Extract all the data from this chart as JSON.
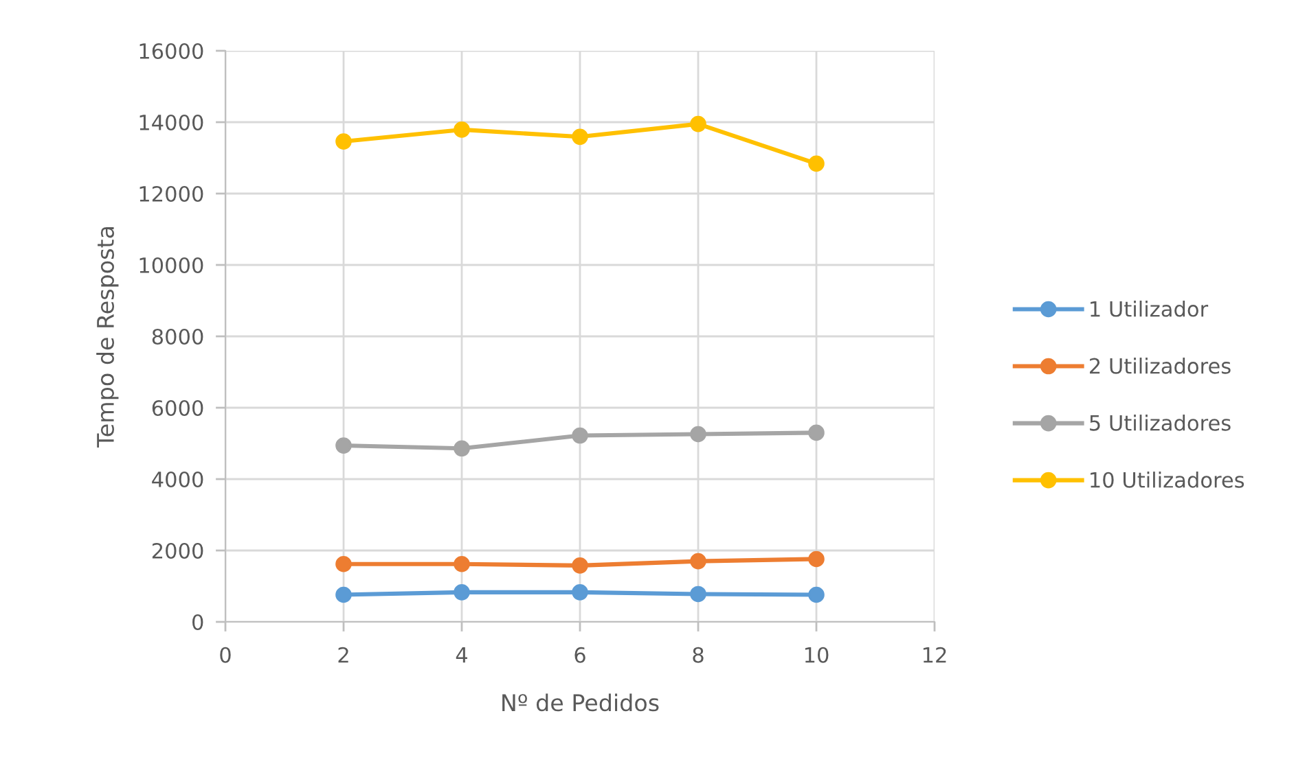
{
  "chart_data": {
    "type": "line",
    "xlabel": "Nº de Pedidos",
    "ylabel": "Tempo de Resposta",
    "x": [
      2,
      4,
      6,
      8,
      10
    ],
    "series": [
      {
        "name": "1 Utilizador",
        "color": "#5b9bd5",
        "values": [
          760,
          830,
          830,
          780,
          760
        ]
      },
      {
        "name": "2 Utilizadores",
        "color": "#ed7d31",
        "values": [
          1620,
          1620,
          1580,
          1700,
          1760
        ]
      },
      {
        "name": "5 Utilizadores",
        "color": "#a5a5a5",
        "values": [
          4940,
          4860,
          5220,
          5260,
          5300
        ]
      },
      {
        "name": "10 Utilizadores",
        "color": "#ffc000",
        "values": [
          13460,
          13790,
          13590,
          13950,
          12840
        ]
      }
    ],
    "xlim": [
      0,
      12
    ],
    "ylim": [
      0,
      16000
    ],
    "xticks": [
      0,
      2,
      4,
      6,
      8,
      10,
      12
    ],
    "yticks": [
      0,
      2000,
      4000,
      6000,
      8000,
      10000,
      12000,
      14000,
      16000
    ],
    "grid": true,
    "legend": "right",
    "marker": "circle",
    "line_style": "solid"
  }
}
